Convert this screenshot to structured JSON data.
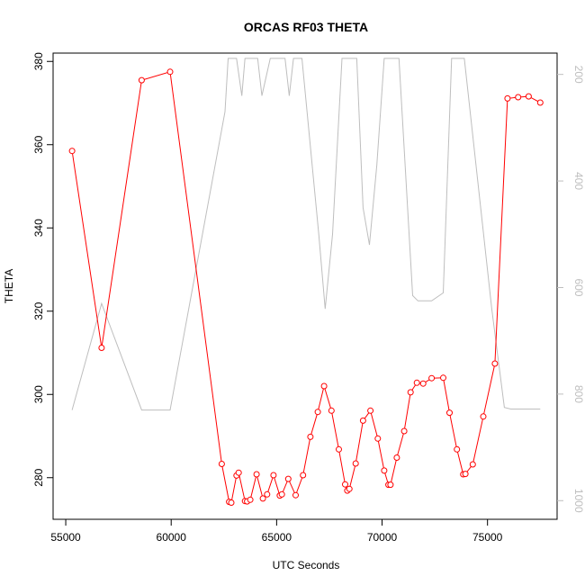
{
  "chart_data": {
    "type": "line",
    "title": "ORCAS RF03 THETA",
    "xlabel": "UTC Seconds",
    "ylabel": "THETA",
    "xlim": [
      54400,
      78300
    ],
    "ylim": [
      270,
      382
    ],
    "x_ticks": [
      55000,
      60000,
      65000,
      70000,
      75000
    ],
    "y_ticks": [
      280,
      300,
      320,
      340,
      360,
      380
    ],
    "y2_lim": [
      1035,
      160
    ],
    "y2_ticks": [
      200,
      400,
      600,
      800,
      1000
    ],
    "grid": false,
    "legend": "none",
    "series": [
      {
        "color": "#ff0000",
        "style": "line+open-circles",
        "axis": "left",
        "x": [
          55300,
          56700,
          58600,
          59950,
          62400,
          62750,
          62850,
          63100,
          63200,
          63500,
          63600,
          63750,
          64050,
          64350,
          64550,
          64850,
          65150,
          65250,
          65550,
          65900,
          66250,
          66600,
          66950,
          67250,
          67600,
          67950,
          68250,
          68350,
          68450,
          68750,
          69100,
          69450,
          69800,
          70100,
          70300,
          70400,
          70700,
          71050,
          71350,
          71650,
          71950,
          72350,
          72900,
          73200,
          73550,
          73850,
          73950,
          74300,
          74800,
          75350,
          75950,
          76450,
          76950,
          77500
        ],
        "y": [
          358.5,
          311.2,
          375.5,
          377.5,
          283.3,
          274.2,
          274.0,
          280.5,
          281.2,
          274.4,
          274.3,
          274.7,
          280.8,
          275.0,
          276.0,
          280.6,
          275.7,
          276.0,
          279.7,
          275.8,
          280.6,
          289.8,
          295.8,
          302.0,
          296.1,
          286.8,
          278.4,
          276.9,
          277.3,
          283.4,
          293.7,
          296.1,
          289.4,
          281.7,
          278.3,
          278.3,
          284.8,
          291.2,
          300.5,
          302.8,
          302.6,
          303.9,
          304.0,
          295.6,
          286.8,
          280.8,
          280.9,
          283.2,
          294.7,
          307.4,
          371.1,
          371.4,
          371.6,
          370.1
        ]
      },
      {
        "color": "#bebebe",
        "style": "line",
        "axis": "right",
        "x": [
          55300,
          56700,
          58600,
          59950,
          62550,
          62700,
          63100,
          63350,
          63500,
          63650,
          64100,
          64300,
          64700,
          65100,
          65400,
          65600,
          65800,
          66200,
          67000,
          67300,
          67650,
          68100,
          68450,
          68800,
          69100,
          69400,
          69750,
          70100,
          70450,
          70800,
          71450,
          71700,
          72350,
          72900,
          73300,
          73900,
          75200,
          75800,
          76100,
          77500
        ],
        "y": [
          830,
          630,
          830,
          830,
          270,
          170,
          170,
          240,
          170,
          170,
          170,
          240,
          170,
          170,
          170,
          240,
          170,
          170,
          500,
          640,
          500,
          170,
          170,
          170,
          450,
          520,
          370,
          170,
          170,
          170,
          615,
          625,
          625,
          610,
          170,
          170,
          640,
          825,
          828,
          828
        ]
      }
    ]
  }
}
